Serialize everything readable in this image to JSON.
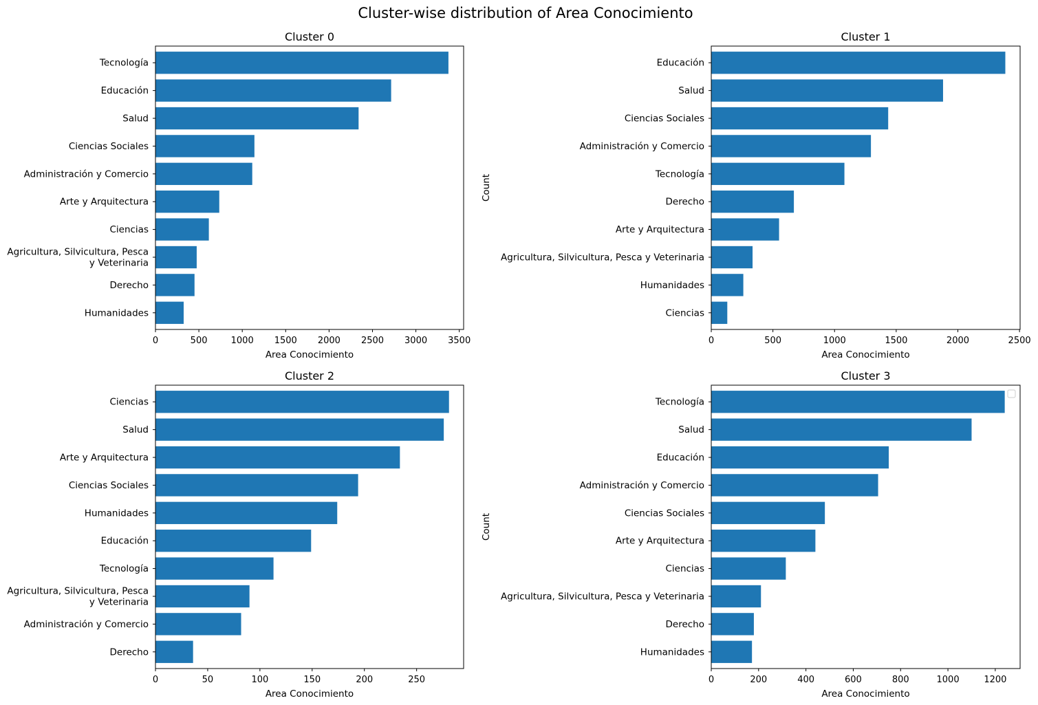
{
  "figure_title": "Cluster-wise distribution of Area Conocimiento",
  "colors": {
    "bar": "#1f77b4"
  },
  "chart_data": [
    {
      "type": "bar",
      "orientation": "horizontal",
      "title": "Cluster 0",
      "xlabel": "Area Conocimiento",
      "ylabel": "",
      "xlim": [
        0,
        3550
      ],
      "xticks": [
        0,
        500,
        1000,
        1500,
        2000,
        2500,
        3000,
        3500
      ],
      "categories": [
        "Humanidades",
        "Derecho",
        "Agricultura, Silvicultura, Pesca\ny Veterinaria",
        "Ciencias",
        "Arte y Arquitectura",
        "Administración y Comercio",
        "Ciencias Sociales",
        "Salud",
        "Educación",
        "Tecnología"
      ],
      "values": [
        325,
        450,
        475,
        615,
        735,
        1115,
        1140,
        2340,
        2715,
        3375
      ],
      "legend": false
    },
    {
      "type": "bar",
      "orientation": "horizontal",
      "title": "Cluster 1",
      "xlabel": "Area Conocimiento",
      "ylabel": "Count",
      "xlim": [
        0,
        2505
      ],
      "xticks": [
        0,
        500,
        1000,
        1500,
        2000,
        2500
      ],
      "categories": [
        "Ciencias",
        "Humanidades",
        "Agricultura, Silvicultura, Pesca y Veterinaria",
        "Arte y Arquitectura",
        "Derecho",
        "Tecnología",
        "Administración y Comercio",
        "Ciencias Sociales",
        "Salud",
        "Educación"
      ],
      "values": [
        130,
        260,
        335,
        550,
        670,
        1080,
        1295,
        1435,
        1880,
        2385
      ],
      "legend": false
    },
    {
      "type": "bar",
      "orientation": "horizontal",
      "title": "Cluster 2",
      "xlabel": "Area Conocimiento",
      "ylabel": "",
      "xlim": [
        0,
        295
      ],
      "xticks": [
        0,
        50,
        100,
        150,
        200,
        250
      ],
      "categories": [
        "Derecho",
        "Administración y Comercio",
        "Agricultura, Silvicultura, Pesca\ny Veterinaria",
        "Tecnología",
        "Educación",
        "Humanidades",
        "Ciencias Sociales",
        "Arte y Arquitectura",
        "Salud",
        "Ciencias"
      ],
      "values": [
        36,
        82,
        90,
        113,
        149,
        174,
        194,
        234,
        276,
        281
      ],
      "legend": false
    },
    {
      "type": "bar",
      "orientation": "horizontal",
      "title": "Cluster 3",
      "xlabel": "Area Conocimiento",
      "ylabel": "Count",
      "xlim": [
        0,
        1305
      ],
      "xticks": [
        0,
        200,
        400,
        600,
        800,
        1000,
        1200
      ],
      "categories": [
        "Humanidades",
        "Derecho",
        "Agricultura, Silvicultura, Pesca y Veterinaria",
        "Ciencias",
        "Arte y Arquitectura",
        "Ciencias Sociales",
        "Administración y Comercio",
        "Educación",
        "Salud",
        "Tecnología"
      ],
      "values": [
        172,
        180,
        210,
        315,
        440,
        480,
        705,
        750,
        1100,
        1240
      ],
      "legend": true
    }
  ]
}
